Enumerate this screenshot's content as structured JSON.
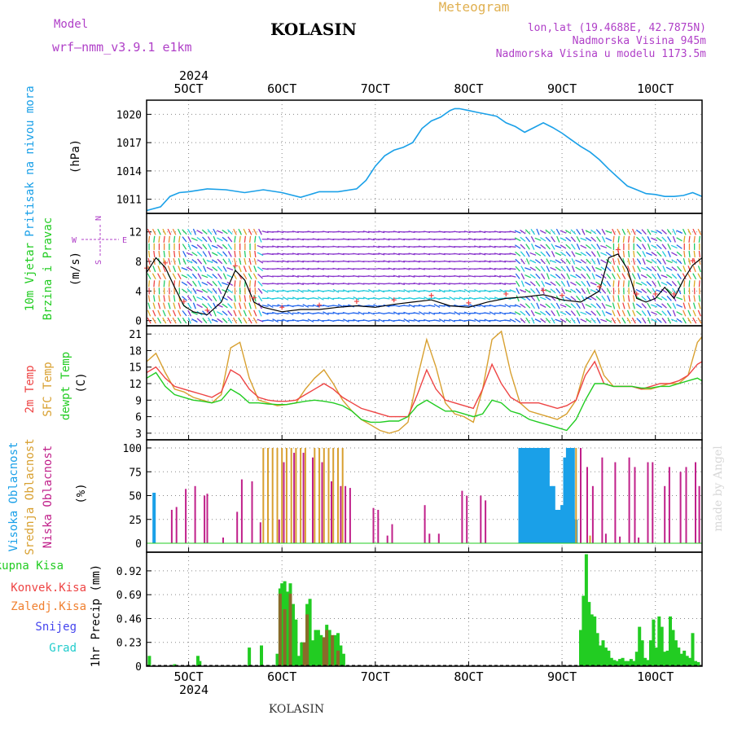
{
  "header": {
    "model_label": "Model",
    "model_name": "wrf—nmm_v3.9.1  e1km",
    "title": "KOLASIN",
    "subtitle": "Meteogram",
    "lonlat": "lon,lat (19.4688E, 42.7875N)",
    "altitude": "Nadmorska Visina 945m",
    "model_altitude": "Nadmorska Visina u modelu 1173.5m"
  },
  "footer": {
    "station": "KOLASIN",
    "watermark": "made by Angel"
  },
  "time_axis": {
    "year": "2024",
    "ticks": [
      {
        "label": "5OCT",
        "day": 5
      },
      {
        "label": "6OCT",
        "day": 6
      },
      {
        "label": "7OCT",
        "day": 7
      },
      {
        "label": "8OCT",
        "day": 8
      },
      {
        "label": "9OCT",
        "day": 9
      },
      {
        "label": "10OCT",
        "day": 10
      }
    ],
    "start_day": 4.55,
    "end_day": 10.5
  },
  "colors": {
    "pressure": "#1aa0e8",
    "temp2m": "#ee4444",
    "sfc": "#d8a030",
    "dewpt": "#22cc22",
    "high_cloud": "#1aa0e8",
    "mid_cloud": "#d8a030",
    "low_cloud": "#c0208a",
    "total_precip": "#22cc22",
    "conv_precip": "#ee4444",
    "frontal_precip": "#f08030",
    "snow": "#4444ee",
    "hail": "#22cccc",
    "speed_line": "#000000",
    "gust_marker": "#ee4444",
    "purple_label": "#b040c8"
  },
  "chart_data": [
    {
      "type": "line",
      "panel": "pressure",
      "ylabel_lines": [
        "Pritisak na nivou mora",
        "(hPa)"
      ],
      "ylim": [
        1009.5,
        1021.5
      ],
      "yticks": [
        "1011",
        "1014",
        "1017",
        "1020"
      ],
      "series": [
        {
          "x": [
            4.55,
            4.7,
            4.8,
            4.9,
            5.0,
            5.2,
            5.4,
            5.6,
            5.8,
            6.0,
            6.2,
            6.4,
            6.6,
            6.8,
            6.9,
            7.0,
            7.1,
            7.2,
            7.3,
            7.4,
            7.5,
            7.6,
            7.7,
            7.8,
            7.85,
            7.9,
            8.0,
            8.1,
            8.2,
            8.3,
            8.4,
            8.5,
            8.6,
            8.7,
            8.8,
            8.9,
            9.0,
            9.1,
            9.2,
            9.3,
            9.4,
            9.5,
            9.6,
            9.7,
            9.8,
            9.9,
            10.0,
            10.1,
            10.2,
            10.3,
            10.4,
            10.5
          ],
          "values": [
            1009.8,
            1010.2,
            1011.3,
            1011.7,
            1011.8,
            1012.1,
            1012.0,
            1011.7,
            1012.0,
            1011.7,
            1011.2,
            1011.8,
            1011.8,
            1012.1,
            1013.0,
            1014.5,
            1015.6,
            1016.2,
            1016.5,
            1017.0,
            1018.5,
            1019.3,
            1019.7,
            1020.4,
            1020.6,
            1020.6,
            1020.4,
            1020.2,
            1020.0,
            1019.8,
            1019.1,
            1018.7,
            1018.1,
            1018.6,
            1019.1,
            1018.6,
            1018.0,
            1017.3,
            1016.6,
            1016.0,
            1015.2,
            1014.2,
            1013.3,
            1012.4,
            1012.0,
            1011.6,
            1011.5,
            1011.3,
            1011.3,
            1011.4,
            1011.7,
            1011.3
          ]
        }
      ]
    },
    {
      "type": "line",
      "panel": "wind",
      "ylabel_lines": [
        "10m Vjetar",
        "Brzina i Pravac",
        "(m/s)"
      ],
      "compass": {
        "n": "N",
        "w": "W",
        "e": "E",
        "s": "S"
      },
      "ylim": [
        -0.7,
        14.5
      ],
      "yticks": [
        "0",
        "4",
        "8",
        "12"
      ],
      "series": [
        {
          "name": "wind_speed",
          "x": [
            4.55,
            4.65,
            4.75,
            4.85,
            4.95,
            5.05,
            5.2,
            5.35,
            5.5,
            5.6,
            5.7,
            5.8,
            6.0,
            6.2,
            6.4,
            6.6,
            6.8,
            7.0,
            7.2,
            7.4,
            7.6,
            7.8,
            8.0,
            8.2,
            8.4,
            8.6,
            8.8,
            8.9,
            9.0,
            9.2,
            9.4,
            9.5,
            9.6,
            9.7,
            9.8,
            9.9,
            10.0,
            10.1,
            10.2,
            10.3,
            10.4,
            10.5
          ],
          "values": [
            6.5,
            8.5,
            7.2,
            4.5,
            2.0,
            1.2,
            0.8,
            2.5,
            6.8,
            5.5,
            2.5,
            1.8,
            1.2,
            1.5,
            1.5,
            1.8,
            2.0,
            1.8,
            2.2,
            2.5,
            2.8,
            2.0,
            1.8,
            2.5,
            3.0,
            3.2,
            3.5,
            3.2,
            2.8,
            2.5,
            4.0,
            8.5,
            9.0,
            7.0,
            3.0,
            2.5,
            3.0,
            4.5,
            3.0,
            5.5,
            7.5,
            8.5
          ]
        }
      ]
    },
    {
      "type": "line",
      "panel": "temperature",
      "ylabel_lines": [
        "2m Temp",
        "SFC Temp",
        "dewpt Temp",
        "(C)"
      ],
      "ylim": [
        1.8,
        22.5
      ],
      "yticks": [
        "3",
        "6",
        "9",
        "12",
        "15",
        "18",
        "21"
      ],
      "x": [
        4.55,
        4.65,
        4.75,
        4.85,
        4.95,
        5.05,
        5.15,
        5.25,
        5.35,
        5.45,
        5.55,
        5.65,
        5.75,
        5.85,
        5.95,
        6.05,
        6.15,
        6.25,
        6.35,
        6.45,
        6.55,
        6.65,
        6.75,
        6.85,
        6.95,
        7.05,
        7.15,
        7.25,
        7.35,
        7.45,
        7.55,
        7.65,
        7.75,
        7.85,
        7.95,
        8.05,
        8.15,
        8.25,
        8.35,
        8.45,
        8.55,
        8.65,
        8.75,
        8.85,
        8.95,
        9.05,
        9.15,
        9.25,
        9.35,
        9.45,
        9.55,
        9.65,
        9.75,
        9.85,
        9.95,
        10.05,
        10.15,
        10.25,
        10.35,
        10.45,
        10.5
      ],
      "series": [
        {
          "name": "2m Temp",
          "values": [
            14,
            15,
            13,
            11.5,
            11,
            10.5,
            10,
            9.5,
            10.5,
            14.5,
            13.5,
            11,
            9.5,
            9,
            8.8,
            8.8,
            9,
            10,
            11,
            12,
            11,
            9.5,
            8.5,
            7.5,
            7,
            6.5,
            6,
            6,
            6,
            10,
            14.5,
            11,
            9,
            8.5,
            8,
            7.5,
            11,
            15.5,
            12,
            9.5,
            8.5,
            8.5,
            8.5,
            8,
            7.5,
            8,
            9,
            13.5,
            16,
            12,
            11.5,
            11.5,
            11.5,
            11,
            11.5,
            12,
            12,
            12.5,
            13.5,
            15.5,
            16
          ]
        },
        {
          "name": "SFC Temp",
          "values": [
            16,
            17.5,
            14,
            11,
            10.5,
            9.5,
            9,
            8.5,
            10,
            18.5,
            19.5,
            13,
            9,
            8.5,
            8,
            8.2,
            8.5,
            11,
            13,
            14.5,
            12,
            9,
            7,
            5.5,
            4.5,
            3.5,
            3,
            3.5,
            5,
            13,
            20,
            15,
            8.5,
            6.5,
            6,
            5,
            11,
            20,
            21.5,
            14,
            8.5,
            7,
            6.5,
            6,
            5.5,
            6.5,
            9,
            15,
            18,
            13.5,
            11.5,
            11.5,
            11.5,
            11,
            11,
            11.5,
            12,
            12,
            13.5,
            19.5,
            20.5
          ]
        },
        {
          "name": "dewpt Temp",
          "values": [
            13,
            14,
            11.5,
            10,
            9.5,
            9,
            8.8,
            8.5,
            9,
            11,
            10,
            8.5,
            8.5,
            8.3,
            8.2,
            8.2,
            8.5,
            8.8,
            9,
            8.8,
            8.5,
            8,
            7,
            5.5,
            5,
            5,
            5.2,
            5.2,
            6,
            8,
            9,
            8,
            7,
            7,
            6.5,
            6,
            6.5,
            9,
            8.5,
            7,
            6.5,
            5.5,
            5,
            4.5,
            4,
            3.5,
            5.5,
            9,
            12,
            12,
            11.5,
            11.5,
            11.5,
            11.2,
            11.2,
            11.5,
            11.5,
            12,
            12.5,
            13,
            12.5
          ]
        }
      ]
    },
    {
      "type": "bar",
      "panel": "cloud",
      "ylabel_lines": [
        "Visoka Oblacnost",
        "Srednja Oblacnost",
        "Niska Oblacnost",
        "(%)"
      ],
      "ylim": [
        0,
        100
      ],
      "yticks": [
        "0",
        "25",
        "50",
        "75",
        "100"
      ],
      "series": [
        {
          "name": "Visoka Oblacnost",
          "x": [
            4.63,
            8.55,
            8.58,
            8.61,
            8.64,
            8.67,
            8.7,
            8.73,
            8.76,
            8.79,
            8.82,
            8.85,
            8.88,
            8.91,
            8.94,
            8.97,
            9.0,
            9.03,
            9.06,
            9.09,
            9.12,
            9.15
          ],
          "values": [
            53,
            100,
            100,
            100,
            100,
            100,
            100,
            100,
            100,
            100,
            100,
            100,
            60,
            60,
            35,
            35,
            40,
            90,
            100,
            100,
            100,
            25
          ]
        },
        {
          "name": "Srednja Oblacnost",
          "x": [
            5.8,
            5.85,
            5.9,
            5.95,
            6.0,
            6.05,
            6.1,
            6.15,
            6.2,
            6.25,
            6.35,
            6.4,
            6.45,
            6.5,
            6.55,
            6.6,
            6.65,
            9.15,
            9.2,
            9.3
          ],
          "values": [
            100,
            100,
            100,
            100,
            100,
            100,
            100,
            100,
            100,
            100,
            100,
            100,
            100,
            100,
            100,
            100,
            100,
            100,
            60,
            8
          ]
        },
        {
          "name": "Niska Oblacnost",
          "x": [
            4.82,
            4.87,
            4.97,
            5.07,
            5.17,
            5.2,
            5.37,
            5.52,
            5.57,
            5.68,
            5.77,
            5.97,
            6.02,
            6.13,
            6.23,
            6.33,
            6.43,
            6.53,
            6.63,
            6.68,
            6.73,
            6.98,
            7.03,
            7.13,
            7.18,
            7.53,
            7.58,
            7.68,
            7.93,
            7.98,
            8.13,
            8.18,
            9.2,
            9.27,
            9.33,
            9.43,
            9.47,
            9.57,
            9.62,
            9.72,
            9.78,
            9.82,
            9.92,
            9.97,
            10.1,
            10.15,
            10.27,
            10.33,
            10.43,
            10.47
          ],
          "values": [
            35,
            38,
            57,
            60,
            50,
            52,
            6,
            33,
            67,
            65,
            22,
            25,
            85,
            95,
            95,
            90,
            85,
            65,
            60,
            60,
            58,
            37,
            35,
            8,
            20,
            40,
            10,
            10,
            55,
            50,
            50,
            45,
            100,
            80,
            60,
            90,
            10,
            85,
            7,
            90,
            80,
            6,
            85,
            85,
            60,
            80,
            75,
            80,
            85,
            60
          ]
        }
      ]
    },
    {
      "type": "bar",
      "panel": "precip",
      "ylabel_lines": [
        "1hr Precip (mm)"
      ],
      "legend": [
        "Ukupna Kisa",
        "Konvek.Kisa",
        "Zaledj.Kisa",
        "Snijeg",
        "Grad"
      ],
      "ylim": [
        0,
        1.1
      ],
      "yticks": [
        "0",
        "0.23",
        "0.46",
        "0.69",
        "0.92"
      ],
      "series": [
        {
          "name": "Ukupna Kisa",
          "x": [
            4.58,
            4.85,
            5.1,
            5.12,
            5.65,
            5.78,
            5.95,
            5.98,
            6.0,
            6.03,
            6.06,
            6.09,
            6.12,
            6.15,
            6.18,
            6.21,
            6.24,
            6.27,
            6.3,
            6.33,
            6.36,
            6.39,
            6.42,
            6.45,
            6.48,
            6.51,
            6.54,
            6.57,
            6.6,
            6.63,
            6.66,
            9.2,
            9.23,
            9.26,
            9.29,
            9.32,
            9.35,
            9.38,
            9.41,
            9.44,
            9.47,
            9.5,
            9.53,
            9.56,
            9.59,
            9.62,
            9.65,
            9.68,
            9.71,
            9.74,
            9.77,
            9.8,
            9.83,
            9.86,
            9.89,
            9.92,
            9.95,
            9.98,
            10.01,
            10.04,
            10.07,
            10.1,
            10.13,
            10.16,
            10.19,
            10.22,
            10.25,
            10.28,
            10.31,
            10.34,
            10.37,
            10.4,
            10.43,
            10.46
          ],
          "values": [
            0.1,
            0.02,
            0.1,
            0.05,
            0.18,
            0.2,
            0.12,
            0.75,
            0.8,
            0.82,
            0.72,
            0.8,
            0.6,
            0.45,
            0.1,
            0.23,
            0.23,
            0.6,
            0.65,
            0.25,
            0.35,
            0.35,
            0.3,
            0.2,
            0.4,
            0.35,
            0.25,
            0.3,
            0.32,
            0.2,
            0.12,
            0.35,
            0.68,
            1.08,
            0.62,
            0.5,
            0.48,
            0.32,
            0.2,
            0.25,
            0.18,
            0.15,
            0.08,
            0.06,
            0.05,
            0.07,
            0.08,
            0.05,
            0.05,
            0.07,
            0.05,
            0.14,
            0.38,
            0.25,
            0.08,
            0.06,
            0.25,
            0.45,
            0.18,
            0.48,
            0.38,
            0.14,
            0.15,
            0.48,
            0.35,
            0.25,
            0.18,
            0.12,
            0.15,
            0.1,
            0.08,
            0.32,
            0.05,
            0.04
          ]
        },
        {
          "name": "Konvek.Kisa",
          "x": [
            5.98,
            6.03,
            6.09,
            6.24,
            6.27,
            6.45,
            6.48,
            6.54,
            6.6
          ],
          "values": [
            0.7,
            0.55,
            0.7,
            0.23,
            0.5,
            0.28,
            0.35,
            0.3,
            0.15
          ]
        }
      ]
    }
  ]
}
